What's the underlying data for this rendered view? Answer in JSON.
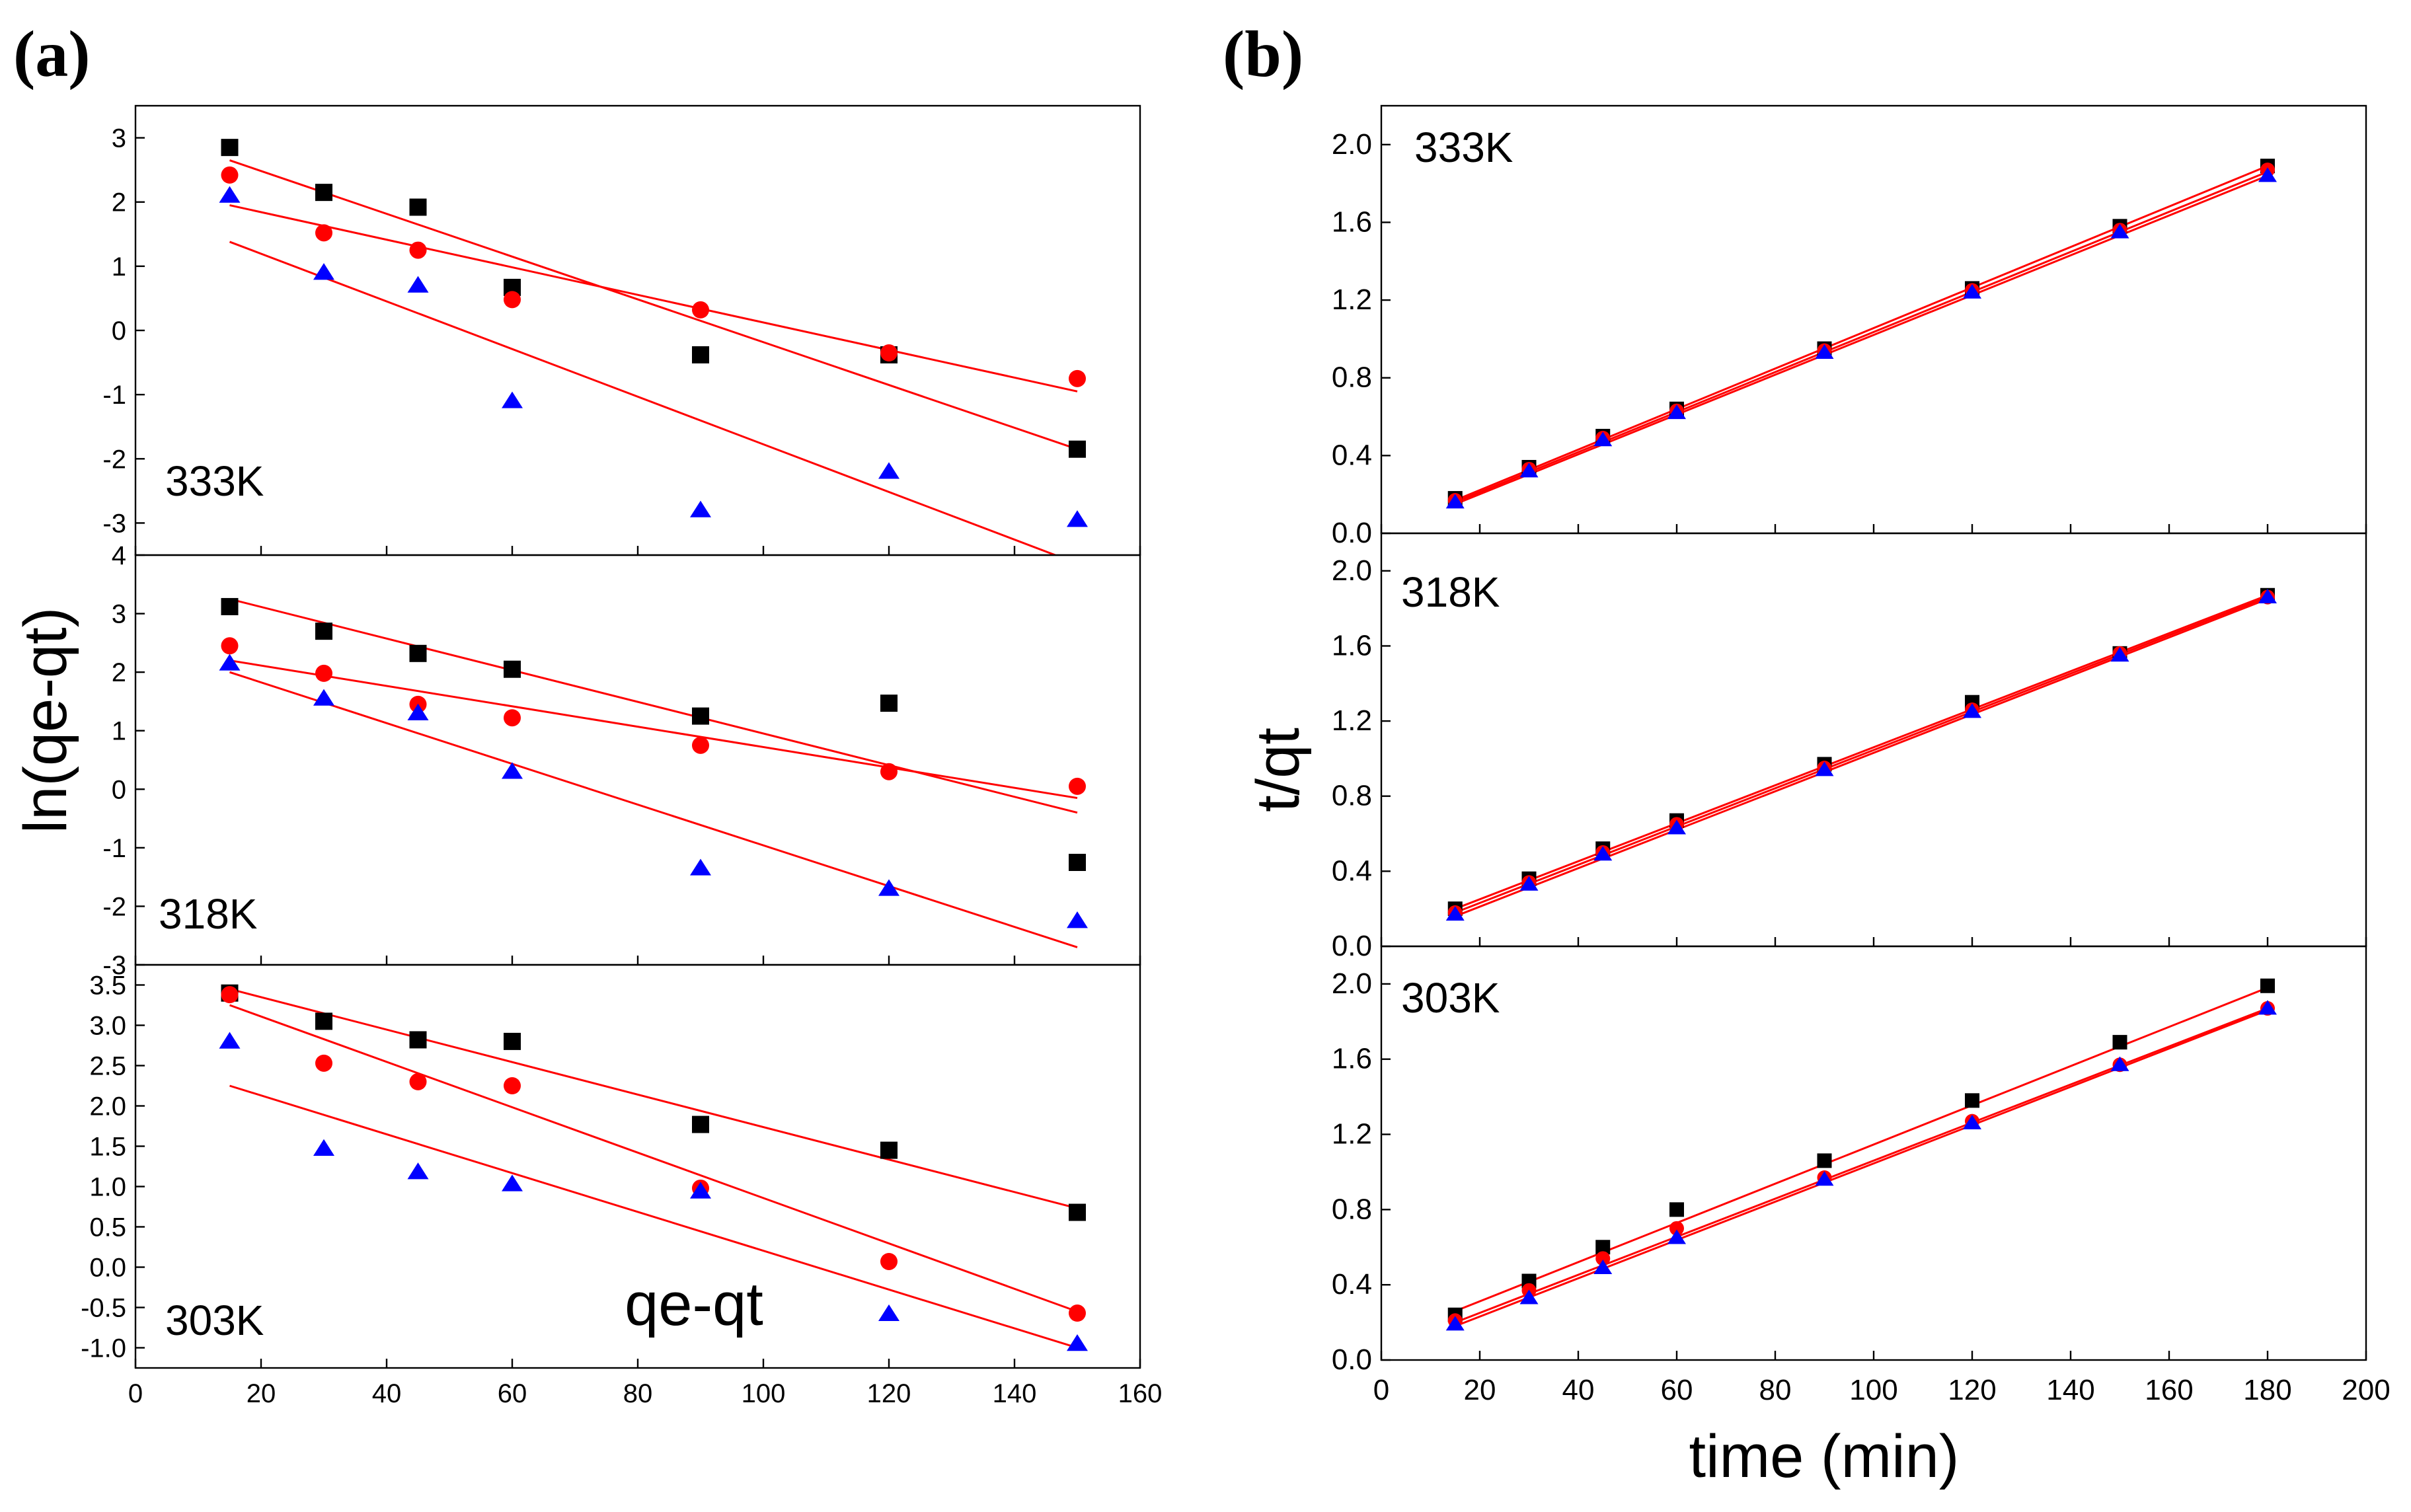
{
  "figure_letters": [
    "(a)",
    "(b)"
  ],
  "colors": {
    "series1": "#000000",
    "series2": "#ff0000",
    "series3": "#0000ff",
    "fit_line": "#ff0000"
  },
  "chart_data": [
    {
      "type": "scatter",
      "figure": "(a)",
      "panel_label": "333K",
      "xlabel": "qe-qt",
      "ylabel": "ln(qe-qt)",
      "xlim": [
        0,
        160
      ],
      "ylim": [
        -3.5,
        3.5
      ],
      "xticks": [
        0,
        20,
        40,
        60,
        80,
        100,
        120,
        140,
        160
      ],
      "yticks": [
        -3,
        -2,
        -1,
        0,
        1,
        2,
        3
      ],
      "x": [
        15,
        30,
        45,
        60,
        90,
        120,
        150
      ],
      "series": [
        {
          "name": "square",
          "marker": "square",
          "color": "#000000",
          "values": [
            2.85,
            2.15,
            1.92,
            0.67,
            -0.38,
            -0.38,
            -1.85
          ],
          "fit": [
            [
              15,
              2.65
            ],
            [
              150,
              -1.85
            ]
          ]
        },
        {
          "name": "circle",
          "marker": "circle",
          "color": "#ff0000",
          "values": [
            2.42,
            1.52,
            1.25,
            0.48,
            0.32,
            -0.35,
            -0.75
          ],
          "fit": [
            [
              15,
              1.95
            ],
            [
              150,
              -0.95
            ]
          ]
        },
        {
          "name": "triangle",
          "marker": "triangle",
          "color": "#0000ff",
          "values": [
            2.1,
            0.9,
            0.7,
            -1.1,
            -2.8,
            -2.2,
            -2.95
          ],
          "fit": [
            [
              15,
              1.38
            ],
            [
              146.5,
              -3.5
            ]
          ]
        }
      ]
    },
    {
      "type": "scatter",
      "figure": "(a)",
      "panel_label": "318K",
      "xlim": [
        0,
        160
      ],
      "ylim": [
        -3,
        4
      ],
      "xticks": [
        0,
        20,
        40,
        60,
        80,
        100,
        120,
        140,
        160
      ],
      "yticks": [
        -3,
        -2,
        -1,
        0,
        1,
        2,
        3,
        4
      ],
      "x": [
        15,
        30,
        45,
        60,
        90,
        120,
        150
      ],
      "series": [
        {
          "name": "square",
          "marker": "square",
          "color": "#000000",
          "values": [
            3.12,
            2.7,
            2.32,
            2.05,
            1.25,
            1.47,
            -1.25
          ],
          "fit": [
            [
              15,
              3.25
            ],
            [
              150,
              -0.4
            ]
          ]
        },
        {
          "name": "circle",
          "marker": "circle",
          "color": "#ff0000",
          "values": [
            2.45,
            1.98,
            1.45,
            1.22,
            0.75,
            0.3,
            0.05
          ],
          "fit": [
            [
              15,
              2.2
            ],
            [
              150,
              -0.15
            ]
          ]
        },
        {
          "name": "triangle",
          "marker": "triangle",
          "color": "#0000ff",
          "values": [
            2.15,
            1.55,
            1.3,
            0.3,
            -1.35,
            -1.7,
            -2.25
          ],
          "fit": [
            [
              15,
              2.0
            ],
            [
              150,
              -2.7
            ]
          ]
        }
      ]
    },
    {
      "type": "scatter",
      "figure": "(a)",
      "panel_label": "303K",
      "xlim": [
        0,
        160
      ],
      "ylim": [
        -1.25,
        3.75
      ],
      "xticks": [
        0,
        20,
        40,
        60,
        80,
        100,
        120,
        140,
        160
      ],
      "yticks": [
        -1.0,
        -0.5,
        0.0,
        0.5,
        1.0,
        1.5,
        2.0,
        2.5,
        3.0,
        3.5
      ],
      "ytick_labels": [
        "-1.0",
        "-0.5",
        "0.0",
        "0.5",
        "1.0",
        "1.5",
        "2.0",
        "2.5",
        "3.0",
        "3.5"
      ],
      "x": [
        15,
        30,
        45,
        60,
        90,
        120,
        150
      ],
      "series": [
        {
          "name": "square",
          "marker": "square",
          "color": "#000000",
          "values": [
            3.4,
            3.05,
            2.82,
            2.8,
            1.77,
            1.45,
            0.68
          ],
          "fit": [
            [
              15,
              3.45
            ],
            [
              150,
              0.73
            ]
          ]
        },
        {
          "name": "circle",
          "marker": "circle",
          "color": "#ff0000",
          "values": [
            3.38,
            2.53,
            2.3,
            2.25,
            0.98,
            0.07,
            -0.57
          ],
          "fit": [
            [
              15,
              3.25
            ],
            [
              150,
              -0.55
            ]
          ]
        },
        {
          "name": "triangle",
          "marker": "triangle",
          "color": "#0000ff",
          "values": [
            2.8,
            1.47,
            1.18,
            1.03,
            0.94,
            -0.58,
            -0.95
          ],
          "fit": [
            [
              15,
              2.25
            ],
            [
              150,
              -1.0
            ]
          ]
        }
      ]
    },
    {
      "type": "scatter",
      "figure": "(b)",
      "panel_label": "333K",
      "xlabel": "time (min)",
      "ylabel": "t/qt",
      "xlim": [
        0,
        200
      ],
      "ylim": [
        0,
        2.2
      ],
      "xticks": [
        0,
        20,
        40,
        60,
        80,
        100,
        120,
        140,
        160,
        180,
        200
      ],
      "yticks": [
        0.0,
        0.4,
        0.8,
        1.2,
        1.6,
        2.0
      ],
      "ytick_labels": [
        "0.0",
        "0.4",
        "0.8",
        "1.2",
        "1.6",
        "2.0"
      ],
      "x": [
        15,
        30,
        45,
        60,
        90,
        120,
        150,
        180
      ],
      "series": [
        {
          "name": "square",
          "marker": "square",
          "color": "#000000",
          "values": [
            0.18,
            0.34,
            0.5,
            0.64,
            0.95,
            1.26,
            1.58,
            1.89
          ],
          "fit": [
            [
              15,
              0.17
            ],
            [
              180,
              1.89
            ]
          ]
        },
        {
          "name": "circle",
          "marker": "circle",
          "color": "#ff0000",
          "values": [
            0.17,
            0.33,
            0.49,
            0.63,
            0.94,
            1.25,
            1.56,
            1.87
          ],
          "fit": [
            [
              15,
              0.16
            ],
            [
              180,
              1.86
            ]
          ]
        },
        {
          "name": "triangle",
          "marker": "triangle",
          "color": "#0000ff",
          "values": [
            0.16,
            0.32,
            0.48,
            0.62,
            0.93,
            1.24,
            1.55,
            1.84
          ],
          "fit": [
            [
              15,
              0.15
            ],
            [
              180,
              1.84
            ]
          ]
        }
      ]
    },
    {
      "type": "scatter",
      "figure": "(b)",
      "panel_label": "318K",
      "xlim": [
        0,
        200
      ],
      "ylim": [
        0,
        2.2
      ],
      "xticks": [
        0,
        20,
        40,
        60,
        80,
        100,
        120,
        140,
        160,
        180,
        200
      ],
      "yticks": [
        0.0,
        0.4,
        0.8,
        1.2,
        1.6,
        2.0
      ],
      "ytick_labels": [
        "0.0",
        "0.4",
        "0.8",
        "1.2",
        "1.6",
        "2.0"
      ],
      "x": [
        15,
        30,
        45,
        60,
        90,
        120,
        150,
        180
      ],
      "series": [
        {
          "name": "square",
          "marker": "square",
          "color": "#000000",
          "values": [
            0.2,
            0.36,
            0.52,
            0.67,
            0.97,
            1.3,
            1.56,
            1.87
          ],
          "fit": [
            [
              15,
              0.2
            ],
            [
              180,
              1.87
            ]
          ]
        },
        {
          "name": "circle",
          "marker": "circle",
          "color": "#ff0000",
          "values": [
            0.18,
            0.34,
            0.5,
            0.65,
            0.95,
            1.26,
            1.56,
            1.86
          ],
          "fit": [
            [
              15,
              0.18
            ],
            [
              180,
              1.86
            ]
          ]
        },
        {
          "name": "triangle",
          "marker": "triangle",
          "color": "#0000ff",
          "values": [
            0.17,
            0.33,
            0.49,
            0.63,
            0.94,
            1.25,
            1.55,
            1.86
          ],
          "fit": [
            [
              15,
              0.16
            ],
            [
              180,
              1.85
            ]
          ]
        }
      ]
    },
    {
      "type": "scatter",
      "figure": "(b)",
      "panel_label": "303K",
      "xlim": [
        0,
        200
      ],
      "ylim": [
        0,
        2.2
      ],
      "xticks": [
        0,
        20,
        40,
        60,
        80,
        100,
        120,
        140,
        160,
        180,
        200
      ],
      "yticks": [
        0.0,
        0.4,
        0.8,
        1.2,
        1.6,
        2.0
      ],
      "ytick_labels": [
        "0.0",
        "0.4",
        "0.8",
        "1.2",
        "1.6",
        "2.0"
      ],
      "x": [
        15,
        30,
        45,
        60,
        90,
        120,
        150,
        180
      ],
      "series": [
        {
          "name": "square",
          "marker": "square",
          "color": "#000000",
          "values": [
            0.24,
            0.42,
            0.6,
            0.8,
            1.06,
            1.38,
            1.69,
            1.99
          ],
          "fit": [
            [
              15,
              0.26
            ],
            [
              180,
              1.98
            ]
          ]
        },
        {
          "name": "circle",
          "marker": "circle",
          "color": "#ff0000",
          "values": [
            0.21,
            0.37,
            0.54,
            0.7,
            0.97,
            1.27,
            1.57,
            1.87
          ],
          "fit": [
            [
              15,
              0.2
            ],
            [
              180,
              1.87
            ]
          ]
        },
        {
          "name": "triangle",
          "marker": "triangle",
          "color": "#0000ff",
          "values": [
            0.19,
            0.33,
            0.49,
            0.65,
            0.96,
            1.26,
            1.57,
            1.87
          ],
          "fit": [
            [
              15,
              0.18
            ],
            [
              180,
              1.86
            ]
          ]
        }
      ]
    }
  ]
}
